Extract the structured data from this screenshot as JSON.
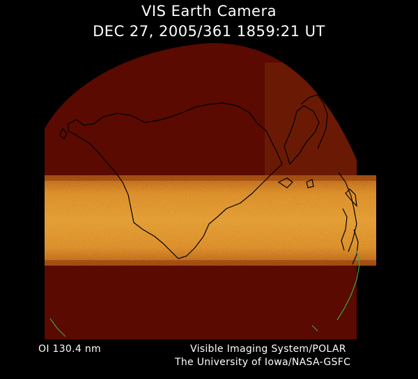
{
  "header": {
    "title": "VIS Earth Camera",
    "timestamp": "DEC 27, 2005/361 1859:21 UT"
  },
  "footer": {
    "wavelength": "OI  130.4 nm",
    "credit_line1": "Visible Imaging System/POLAR",
    "credit_line2": "The University of Iowa/NASA-GSFC"
  },
  "colors": {
    "background": "#000000",
    "earth_disk": "#5a0a00",
    "aurora_band": "#d6801c",
    "coastline": "#000000",
    "coastline_edge": "#3aa83a"
  }
}
